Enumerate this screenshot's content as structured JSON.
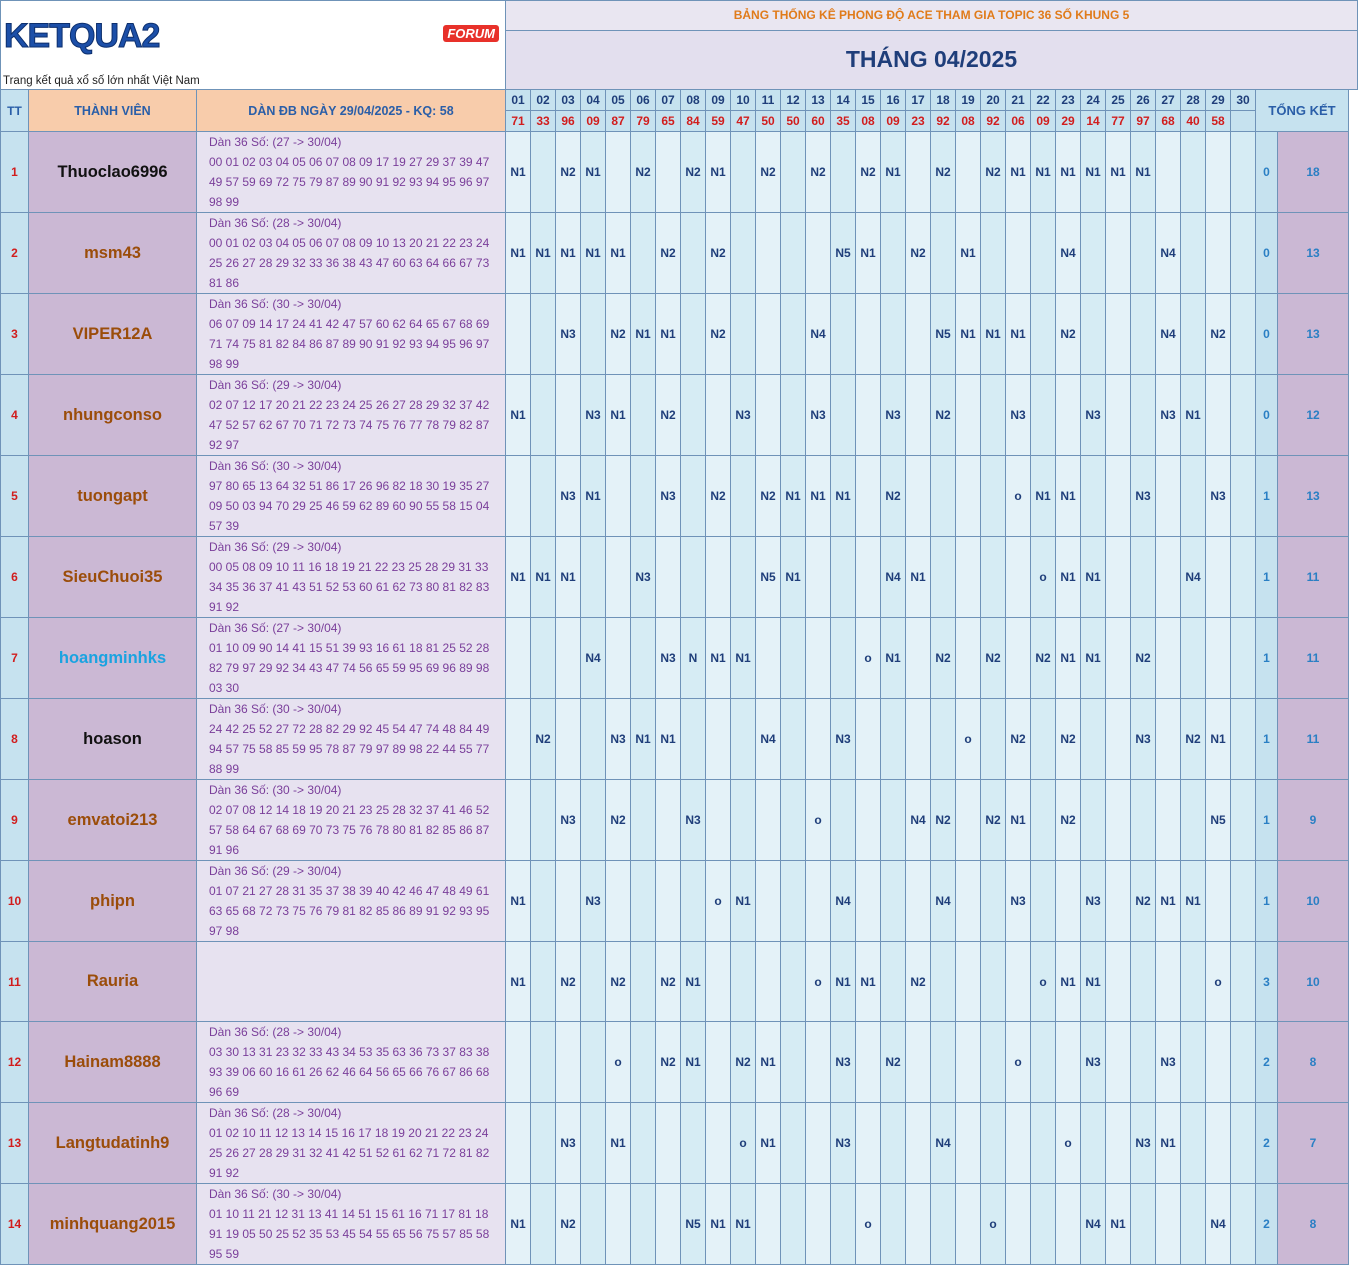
{
  "logo": {
    "brand": "KETQUA2",
    "badge": "FORUM",
    "tagline": "Trang kết quả xổ số lớn nhất Việt Nam"
  },
  "title": "BẢNG THỐNG KÊ PHONG ĐỘ ACE THAM GIA TOPIC 36 SỐ KHUNG 5",
  "month": "THÁNG 04/2025",
  "headers": {
    "tt": "TT",
    "member": "THÀNH VIÊN",
    "dan": "DÀN ĐB NGÀY 29/04/2025 - KQ: 58",
    "total": "TỔNG KẾT"
  },
  "days": [
    "01",
    "02",
    "03",
    "04",
    "05",
    "06",
    "07",
    "08",
    "09",
    "10",
    "11",
    "12",
    "13",
    "14",
    "15",
    "16",
    "17",
    "18",
    "19",
    "20",
    "21",
    "22",
    "23",
    "24",
    "25",
    "26",
    "27",
    "28",
    "29",
    "30"
  ],
  "results": [
    "71",
    "33",
    "96",
    "09",
    "87",
    "79",
    "65",
    "84",
    "59",
    "47",
    "50",
    "50",
    "60",
    "35",
    "08",
    "09",
    "23",
    "92",
    "08",
    "92",
    "06",
    "09",
    "29",
    "14",
    "77",
    "97",
    "68",
    "40",
    "58",
    ""
  ],
  "colors": {
    "name_brown": "#9b4d0a",
    "name_black": "#111111",
    "name_blue": "#1aa3e0"
  },
  "rows": [
    {
      "tt": "1",
      "name": "Thuoclao6996",
      "color": "black",
      "dan": [
        "Dàn 36 Số: (27 -> 30/04)",
        "00 01 02 03 04 05 06 07 08 09 17 19 27 29 37 39 47",
        "49 57 59 69 72 75 79 87 89 90 91 92 93 94 95 96 97",
        "98 99"
      ],
      "marks": [
        "N1",
        "",
        "N2",
        "N1",
        "",
        "N2",
        "",
        "N2",
        "N1",
        "",
        "N2",
        "",
        "N2",
        "",
        "N2",
        "N1",
        "",
        "N2",
        "",
        "N2",
        "N1",
        "N1",
        "N1",
        "N1",
        "N1",
        "N1",
        "",
        "",
        "",
        ""
      ],
      "s1": "0",
      "s2": "18"
    },
    {
      "tt": "2",
      "name": "msm43",
      "color": "brown",
      "dan": [
        "Dàn 36 Số: (28 -> 30/04)",
        "00 01 02 03 04 05 06 07 08 09 10 13 20 21 22 23 24",
        "25 26 27 28 29 32 33 36 38 43 47 60 63 64 66 67 73",
        "81 86"
      ],
      "marks": [
        "N1",
        "N1",
        "N1",
        "N1",
        "N1",
        "",
        "N2",
        "",
        "N2",
        "",
        "",
        "",
        "",
        "N5",
        "N1",
        "",
        "N2",
        "",
        "N1",
        "",
        "",
        "",
        "N4",
        "",
        "",
        "",
        "N4",
        "",
        "",
        ""
      ],
      "s1": "0",
      "s2": "13"
    },
    {
      "tt": "3",
      "name": "VIPER12A",
      "color": "brown",
      "dan": [
        "Dàn 36 Số: (30 -> 30/04)",
        "06 07 09 14 17 24 41 42 47 57 60 62 64 65 67 68 69",
        "71 74 75 81 82 84 86 87 89 90 91 92 93 94 95 96 97",
        "98 99"
      ],
      "marks": [
        "",
        "",
        "N3",
        "",
        "N2",
        "N1",
        "N1",
        "",
        "N2",
        "",
        "",
        "",
        "N4",
        "",
        "",
        "",
        "",
        "N5",
        "N1",
        "N1",
        "N1",
        "",
        "N2",
        "",
        "",
        "",
        "N4",
        "",
        "N2",
        ""
      ],
      "s1": "0",
      "s2": "13"
    },
    {
      "tt": "4",
      "name": "nhungconso",
      "color": "brown",
      "dan": [
        "Dàn 36 Số: (29 -> 30/04)",
        "02 07 12 17 20 21 22 23 24 25 26 27 28 29 32 37 42",
        "47 52 57 62 67 70 71 72 73 74 75 76 77 78 79 82 87",
        "92 97"
      ],
      "marks": [
        "N1",
        "",
        "",
        "N3",
        "N1",
        "",
        "N2",
        "",
        "",
        "N3",
        "",
        "",
        "N3",
        "",
        "",
        "N3",
        "",
        "N2",
        "",
        "",
        "N3",
        "",
        "",
        "N3",
        "",
        "",
        "N3",
        "N1",
        "",
        ""
      ],
      "s1": "0",
      "s2": "12"
    },
    {
      "tt": "5",
      "name": "tuongapt",
      "color": "brown",
      "dan": [
        "Dàn 36 Số: (30 -> 30/04)",
        "97 80 65 13 64 32 51 86 17 26 96 82 18 30 19 35 27",
        "09 50 03 94 70 29 25 46 59 62 89 60 90 55 58 15 04",
        "57 39"
      ],
      "marks": [
        "",
        "",
        "N3",
        "N1",
        "",
        "",
        "N3",
        "",
        "N2",
        "",
        "N2",
        "N1",
        "N1",
        "N1",
        "",
        "N2",
        "",
        "",
        "",
        "",
        "o",
        "N1",
        "N1",
        "",
        "",
        "N3",
        "",
        "",
        "N3",
        ""
      ],
      "s1": "1",
      "s2": "13"
    },
    {
      "tt": "6",
      "name": "SieuChuoi35",
      "color": "brown",
      "dan": [
        "Dàn 36 Số: (29 -> 30/04)",
        "00 05 08 09 10 11 16 18 19 21 22 23 25 28 29 31 33",
        "34 35 36 37 41 43 51 52 53 60 61 62 73 80 81 82 83",
        "91 92"
      ],
      "marks": [
        "N1",
        "N1",
        "N1",
        "",
        "",
        "N3",
        "",
        "",
        "",
        "",
        "N5",
        "N1",
        "",
        "",
        "",
        "N4",
        "N1",
        "",
        "",
        "",
        "",
        "o",
        "N1",
        "N1",
        "",
        "",
        "",
        "N4",
        "",
        ""
      ],
      "s1": "1",
      "s2": "11"
    },
    {
      "tt": "7",
      "name": "hoangminhks",
      "color": "blue",
      "dan": [
        "Dàn 36 Số: (27 -> 30/04)",
        "01 10 09 90 14 41 15 51 39 93 16 61 18 81 25 52 28",
        "82 79 97 29 92 34 43 47 74 56 65 59 95 69 96 89 98",
        "03 30"
      ],
      "marks": [
        "",
        "",
        "",
        "N4",
        "",
        "",
        "N3",
        "N",
        "N1",
        "N1",
        "",
        "",
        "",
        "",
        "o",
        "N1",
        "",
        "N2",
        "",
        "N2",
        "",
        "N2",
        "N1",
        "N1",
        "",
        "N2",
        "",
        "",
        "",
        ""
      ],
      "s1": "1",
      "s2": "11"
    },
    {
      "tt": "8",
      "name": "hoason",
      "color": "black",
      "dan": [
        "Dàn 36 Số: (30 -> 30/04)",
        "24 42 25 52 27 72 28 82 29 92 45 54 47 74 48 84 49",
        "94 57 75 58 85 59 95 78 87 79 97 89 98 22 44 55 77",
        "88 99"
      ],
      "marks": [
        "",
        "N2",
        "",
        "",
        "N3",
        "N1",
        "N1",
        "",
        "",
        "",
        "N4",
        "",
        "",
        "N3",
        "",
        "",
        "",
        "",
        "o",
        "",
        "N2",
        "",
        "N2",
        "",
        "",
        "N3",
        "",
        "N2",
        "N1",
        ""
      ],
      "s1": "1",
      "s2": "11"
    },
    {
      "tt": "9",
      "name": "emvatoi213",
      "color": "brown",
      "dan": [
        "Dàn 36 Số: (30 -> 30/04)",
        "02 07 08 12 14 18 19 20 21 23 25 28 32 37 41 46 52",
        "57 58 64 67 68 69 70 73 75 76 78 80 81 82 85 86 87",
        "91 96"
      ],
      "marks": [
        "",
        "",
        "N3",
        "",
        "N2",
        "",
        "",
        "N3",
        "",
        "",
        "",
        "",
        "o",
        "",
        "",
        "",
        "N4",
        "N2",
        "",
        "N2",
        "N1",
        "",
        "N2",
        "",
        "",
        "",
        "",
        "",
        "N5",
        ""
      ],
      "s1": "1",
      "s2": "9"
    },
    {
      "tt": "10",
      "name": "phipn",
      "color": "brown",
      "dan": [
        "Dàn 36 Số: (29 -> 30/04)",
        "01 07 21 27 28 31 35 37 38 39 40 42 46 47 48 49 61",
        "63 65 68 72 73 75 76 79 81 82 85 86 89 91 92 93 95",
        "97 98"
      ],
      "marks": [
        "N1",
        "",
        "",
        "N3",
        "",
        "",
        "",
        "",
        "o",
        "N1",
        "",
        "",
        "",
        "N4",
        "",
        "",
        "",
        "N4",
        "",
        "",
        "N3",
        "",
        "",
        "N3",
        "",
        "N2",
        "N1",
        "N1",
        "",
        ""
      ],
      "s1": "1",
      "s2": "10"
    },
    {
      "tt": "11",
      "name": "Rauria",
      "color": "brown",
      "dan": [],
      "marks": [
        "N1",
        "",
        "N2",
        "",
        "N2",
        "",
        "N2",
        "N1",
        "",
        "",
        "",
        "",
        "o",
        "N1",
        "N1",
        "",
        "N2",
        "",
        "",
        "",
        "",
        "o",
        "N1",
        "N1",
        "",
        "",
        "",
        "",
        "o",
        ""
      ],
      "s1": "3",
      "s2": "10"
    },
    {
      "tt": "12",
      "name": "Hainam8888",
      "color": "brown",
      "dan": [
        "Dàn 36 Số: (28 -> 30/04)",
        "03 30 13 31 23 32 33 43 34 53 35 63 36 73 37 83 38",
        "93 39 06 60 16 61 26 62 46 64 56 65 66 76 67 86 68",
        "96 69"
      ],
      "marks": [
        "",
        "",
        "",
        "",
        "o",
        "",
        "N2",
        "N1",
        "",
        "N2",
        "N1",
        "",
        "",
        "N3",
        "",
        "N2",
        "",
        "",
        "",
        "",
        "o",
        "",
        "",
        "N3",
        "",
        "",
        "N3",
        "",
        "",
        ""
      ],
      "s1": "2",
      "s2": "8"
    },
    {
      "tt": "13",
      "name": "Langtudatinh9",
      "color": "brown",
      "dan": [
        "Dàn 36 Số: (28 -> 30/04)",
        "01 02 10 11 12 13 14 15 16 17 18 19 20 21 22 23 24",
        "25 26 27 28 29 31 32 41 42 51 52 61 62 71 72 81 82",
        "91 92"
      ],
      "marks": [
        "",
        "",
        "N3",
        "",
        "N1",
        "",
        "",
        "",
        "",
        "o",
        "N1",
        "",
        "",
        "N3",
        "",
        "",
        "",
        "N4",
        "",
        "",
        "",
        "",
        "o",
        "",
        "",
        "N3",
        "N1",
        "",
        "",
        ""
      ],
      "s1": "2",
      "s2": "7"
    },
    {
      "tt": "14",
      "name": "minhquang2015",
      "color": "brown",
      "dan": [
        "Dàn 36 Số: (30 -> 30/04)",
        "01 10 11 21 12 31 13 41 14 51 15 61 16 71 17 81 18",
        "91 19 05 50 25 52 35 53 45 54 55 65 56 75 57 85 58",
        "95 59"
      ],
      "marks": [
        "N1",
        "",
        "N2",
        "",
        "",
        "",
        "",
        "N5",
        "N1",
        "N1",
        "",
        "",
        "",
        "",
        "o",
        "",
        "",
        "",
        "",
        "o",
        "",
        "",
        "",
        "N4",
        "N1",
        "",
        "",
        "",
        "N4",
        ""
      ],
      "s1": "2",
      "s2": "8"
    }
  ]
}
